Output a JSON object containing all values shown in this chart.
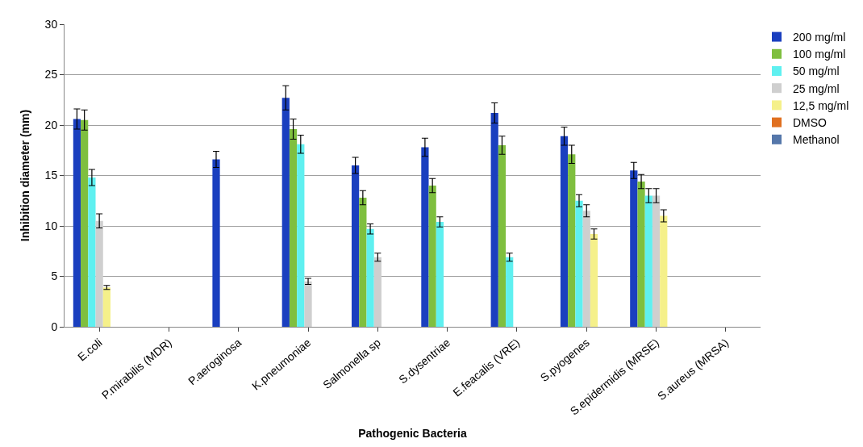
{
  "chart_data": {
    "type": "bar",
    "xlabel": "Pathogenic Bacteria",
    "ylabel": "Inhibition diameter (mm)",
    "categories": [
      "E.coli",
      "P.mirabilis (MDR)",
      "P.aeroginosa",
      "K.pneumoniae",
      "Salmonella sp",
      "S.dysentriae",
      "E.feacalis (VRE)",
      "S.pyogenes",
      "S.epidermidis (MRSE)",
      "S.aureus (MRSA)"
    ],
    "ylim": [
      0,
      30
    ],
    "yticks": [
      0,
      5,
      10,
      15,
      20,
      25,
      30
    ],
    "grid": "y",
    "legend": "top right",
    "series": [
      {
        "name": "200 mg/ml",
        "color": "#1a3fbf",
        "values": [
          20.6,
          null,
          16.6,
          22.7,
          16.0,
          17.8,
          21.2,
          18.9,
          15.5,
          null
        ],
        "errors": [
          1,
          null,
          0.8,
          1.2,
          0.8,
          0.9,
          1,
          0.9,
          0.8,
          null
        ]
      },
      {
        "name": "100 mg/ml",
        "color": "#7fbf3f",
        "values": [
          20.5,
          null,
          null,
          19.6,
          12.8,
          14.0,
          18.0,
          17.1,
          14.4,
          null
        ],
        "errors": [
          1,
          null,
          null,
          1,
          0.7,
          0.7,
          0.9,
          0.9,
          0.7,
          null
        ]
      },
      {
        "name": "50 mg/ml",
        "color": "#5ff0f0",
        "values": [
          14.8,
          null,
          null,
          18.1,
          9.7,
          10.4,
          6.9,
          12.5,
          13.0,
          null
        ],
        "errors": [
          0.8,
          null,
          null,
          0.9,
          0.5,
          0.5,
          0.4,
          0.6,
          0.7,
          null
        ]
      },
      {
        "name": "25 mg/ml",
        "color": "#cfcfcf",
        "values": [
          10.5,
          null,
          null,
          4.5,
          6.9,
          null,
          null,
          11.5,
          13.0,
          null
        ],
        "errors": [
          0.7,
          null,
          null,
          0.3,
          0.4,
          null,
          null,
          0.6,
          0.7,
          null
        ]
      },
      {
        "name": "12,5 mg/ml",
        "color": "#f5f08a",
        "values": [
          3.9,
          null,
          null,
          null,
          null,
          null,
          null,
          9.2,
          11.0,
          null
        ],
        "errors": [
          0.2,
          null,
          null,
          null,
          null,
          null,
          null,
          0.5,
          0.6,
          null
        ]
      },
      {
        "name": "DMSO",
        "color": "#e07020",
        "values": [
          null,
          null,
          null,
          null,
          null,
          null,
          null,
          null,
          null,
          null
        ]
      },
      {
        "name": "Methanol",
        "color": "#5577aa",
        "values": [
          null,
          null,
          null,
          null,
          null,
          null,
          null,
          null,
          null,
          null
        ]
      }
    ]
  }
}
